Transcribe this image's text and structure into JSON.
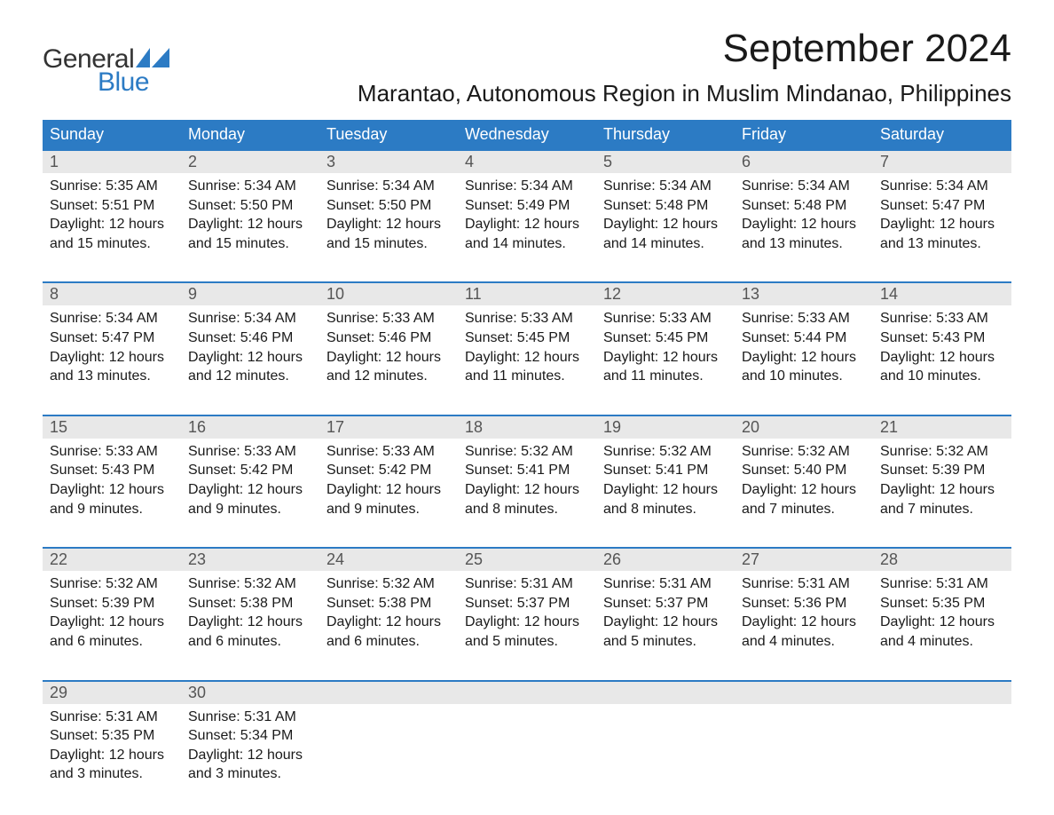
{
  "logo": {
    "text_top": "General",
    "text_bottom": "Blue",
    "color_top": "#333333",
    "color_bottom": "#2c7bc4",
    "flag_color": "#2c7bc4"
  },
  "header": {
    "month_title": "September 2024",
    "location": "Marantao, Autonomous Region in Muslim Mindanao, Philippines"
  },
  "colors": {
    "header_bg": "#2c7bc4",
    "header_text": "#ffffff",
    "day_number_bg": "#e8e8e8",
    "day_number_text": "#555555",
    "body_text": "#1a1a1a",
    "border": "#2c7bc4",
    "page_bg": "#ffffff"
  },
  "typography": {
    "month_title_size": 44,
    "location_size": 26,
    "weekday_size": 18,
    "day_number_size": 18,
    "content_size": 16
  },
  "weekdays": [
    "Sunday",
    "Monday",
    "Tuesday",
    "Wednesday",
    "Thursday",
    "Friday",
    "Saturday"
  ],
  "weeks": [
    [
      {
        "day": "1",
        "sunrise": "Sunrise: 5:35 AM",
        "sunset": "Sunset: 5:51 PM",
        "daylight": "Daylight: 12 hours and 15 minutes."
      },
      {
        "day": "2",
        "sunrise": "Sunrise: 5:34 AM",
        "sunset": "Sunset: 5:50 PM",
        "daylight": "Daylight: 12 hours and 15 minutes."
      },
      {
        "day": "3",
        "sunrise": "Sunrise: 5:34 AM",
        "sunset": "Sunset: 5:50 PM",
        "daylight": "Daylight: 12 hours and 15 minutes."
      },
      {
        "day": "4",
        "sunrise": "Sunrise: 5:34 AM",
        "sunset": "Sunset: 5:49 PM",
        "daylight": "Daylight: 12 hours and 14 minutes."
      },
      {
        "day": "5",
        "sunrise": "Sunrise: 5:34 AM",
        "sunset": "Sunset: 5:48 PM",
        "daylight": "Daylight: 12 hours and 14 minutes."
      },
      {
        "day": "6",
        "sunrise": "Sunrise: 5:34 AM",
        "sunset": "Sunset: 5:48 PM",
        "daylight": "Daylight: 12 hours and 13 minutes."
      },
      {
        "day": "7",
        "sunrise": "Sunrise: 5:34 AM",
        "sunset": "Sunset: 5:47 PM",
        "daylight": "Daylight: 12 hours and 13 minutes."
      }
    ],
    [
      {
        "day": "8",
        "sunrise": "Sunrise: 5:34 AM",
        "sunset": "Sunset: 5:47 PM",
        "daylight": "Daylight: 12 hours and 13 minutes."
      },
      {
        "day": "9",
        "sunrise": "Sunrise: 5:34 AM",
        "sunset": "Sunset: 5:46 PM",
        "daylight": "Daylight: 12 hours and 12 minutes."
      },
      {
        "day": "10",
        "sunrise": "Sunrise: 5:33 AM",
        "sunset": "Sunset: 5:46 PM",
        "daylight": "Daylight: 12 hours and 12 minutes."
      },
      {
        "day": "11",
        "sunrise": "Sunrise: 5:33 AM",
        "sunset": "Sunset: 5:45 PM",
        "daylight": "Daylight: 12 hours and 11 minutes."
      },
      {
        "day": "12",
        "sunrise": "Sunrise: 5:33 AM",
        "sunset": "Sunset: 5:45 PM",
        "daylight": "Daylight: 12 hours and 11 minutes."
      },
      {
        "day": "13",
        "sunrise": "Sunrise: 5:33 AM",
        "sunset": "Sunset: 5:44 PM",
        "daylight": "Daylight: 12 hours and 10 minutes."
      },
      {
        "day": "14",
        "sunrise": "Sunrise: 5:33 AM",
        "sunset": "Sunset: 5:43 PM",
        "daylight": "Daylight: 12 hours and 10 minutes."
      }
    ],
    [
      {
        "day": "15",
        "sunrise": "Sunrise: 5:33 AM",
        "sunset": "Sunset: 5:43 PM",
        "daylight": "Daylight: 12 hours and 9 minutes."
      },
      {
        "day": "16",
        "sunrise": "Sunrise: 5:33 AM",
        "sunset": "Sunset: 5:42 PM",
        "daylight": "Daylight: 12 hours and 9 minutes."
      },
      {
        "day": "17",
        "sunrise": "Sunrise: 5:33 AM",
        "sunset": "Sunset: 5:42 PM",
        "daylight": "Daylight: 12 hours and 9 minutes."
      },
      {
        "day": "18",
        "sunrise": "Sunrise: 5:32 AM",
        "sunset": "Sunset: 5:41 PM",
        "daylight": "Daylight: 12 hours and 8 minutes."
      },
      {
        "day": "19",
        "sunrise": "Sunrise: 5:32 AM",
        "sunset": "Sunset: 5:41 PM",
        "daylight": "Daylight: 12 hours and 8 minutes."
      },
      {
        "day": "20",
        "sunrise": "Sunrise: 5:32 AM",
        "sunset": "Sunset: 5:40 PM",
        "daylight": "Daylight: 12 hours and 7 minutes."
      },
      {
        "day": "21",
        "sunrise": "Sunrise: 5:32 AM",
        "sunset": "Sunset: 5:39 PM",
        "daylight": "Daylight: 12 hours and 7 minutes."
      }
    ],
    [
      {
        "day": "22",
        "sunrise": "Sunrise: 5:32 AM",
        "sunset": "Sunset: 5:39 PM",
        "daylight": "Daylight: 12 hours and 6 minutes."
      },
      {
        "day": "23",
        "sunrise": "Sunrise: 5:32 AM",
        "sunset": "Sunset: 5:38 PM",
        "daylight": "Daylight: 12 hours and 6 minutes."
      },
      {
        "day": "24",
        "sunrise": "Sunrise: 5:32 AM",
        "sunset": "Sunset: 5:38 PM",
        "daylight": "Daylight: 12 hours and 6 minutes."
      },
      {
        "day": "25",
        "sunrise": "Sunrise: 5:31 AM",
        "sunset": "Sunset: 5:37 PM",
        "daylight": "Daylight: 12 hours and 5 minutes."
      },
      {
        "day": "26",
        "sunrise": "Sunrise: 5:31 AM",
        "sunset": "Sunset: 5:37 PM",
        "daylight": "Daylight: 12 hours and 5 minutes."
      },
      {
        "day": "27",
        "sunrise": "Sunrise: 5:31 AM",
        "sunset": "Sunset: 5:36 PM",
        "daylight": "Daylight: 12 hours and 4 minutes."
      },
      {
        "day": "28",
        "sunrise": "Sunrise: 5:31 AM",
        "sunset": "Sunset: 5:35 PM",
        "daylight": "Daylight: 12 hours and 4 minutes."
      }
    ],
    [
      {
        "day": "29",
        "sunrise": "Sunrise: 5:31 AM",
        "sunset": "Sunset: 5:35 PM",
        "daylight": "Daylight: 12 hours and 3 minutes."
      },
      {
        "day": "30",
        "sunrise": "Sunrise: 5:31 AM",
        "sunset": "Sunset: 5:34 PM",
        "daylight": "Daylight: 12 hours and 3 minutes."
      },
      {
        "day": "",
        "sunrise": "",
        "sunset": "",
        "daylight": ""
      },
      {
        "day": "",
        "sunrise": "",
        "sunset": "",
        "daylight": ""
      },
      {
        "day": "",
        "sunrise": "",
        "sunset": "",
        "daylight": ""
      },
      {
        "day": "",
        "sunrise": "",
        "sunset": "",
        "daylight": ""
      },
      {
        "day": "",
        "sunrise": "",
        "sunset": "",
        "daylight": ""
      }
    ]
  ]
}
